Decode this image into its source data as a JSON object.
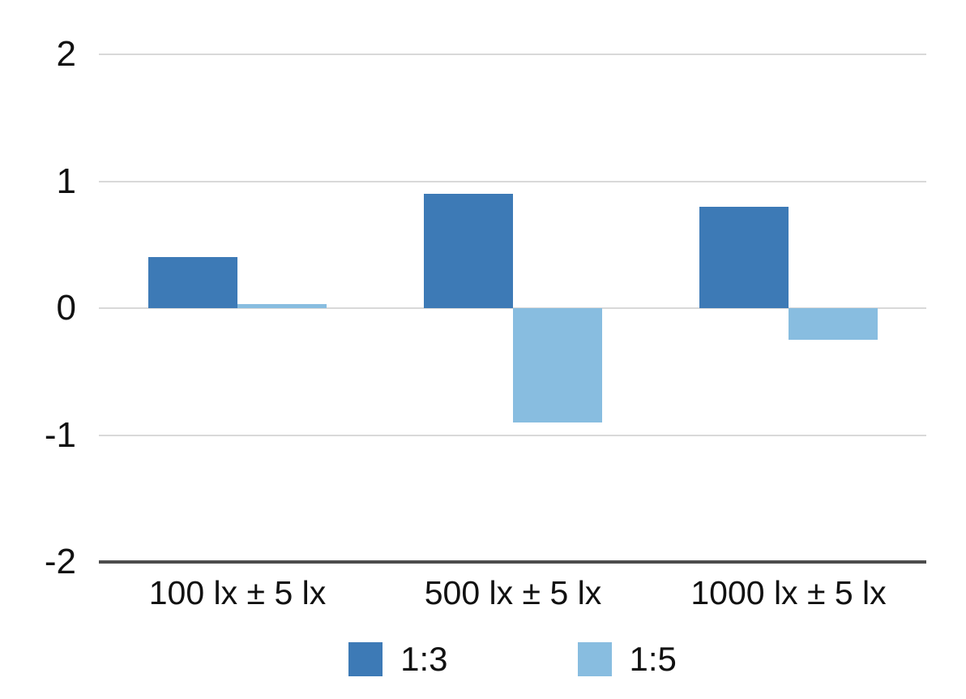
{
  "chart_data": {
    "type": "bar",
    "title": "",
    "xlabel": "",
    "ylabel": "",
    "categories": [
      "100 lx ± 5 lx",
      "500 lx ± 5 lx",
      "1000 lx ± 5 lx"
    ],
    "series": [
      {
        "name": "1:3",
        "color": "#3d7ab6",
        "values": [
          0.4,
          0.9,
          0.8
        ]
      },
      {
        "name": "1:5",
        "color": "#88bde0",
        "values": [
          0.03,
          -0.9,
          -0.25
        ]
      }
    ],
    "ylim": [
      -2,
      2
    ],
    "yticks": [
      "2",
      "1",
      "0",
      "-1",
      "-2"
    ],
    "ytick_values": [
      2,
      1,
      0,
      -1,
      -2
    ],
    "grid": true,
    "legend_position": "bottom"
  },
  "colors": {
    "background": "#ffffff",
    "gridline": "#d9d9d9",
    "axis_line": "#4d4d4d",
    "text": "#111111",
    "series_dark": "#3d7ab6",
    "series_light": "#88bde0"
  }
}
